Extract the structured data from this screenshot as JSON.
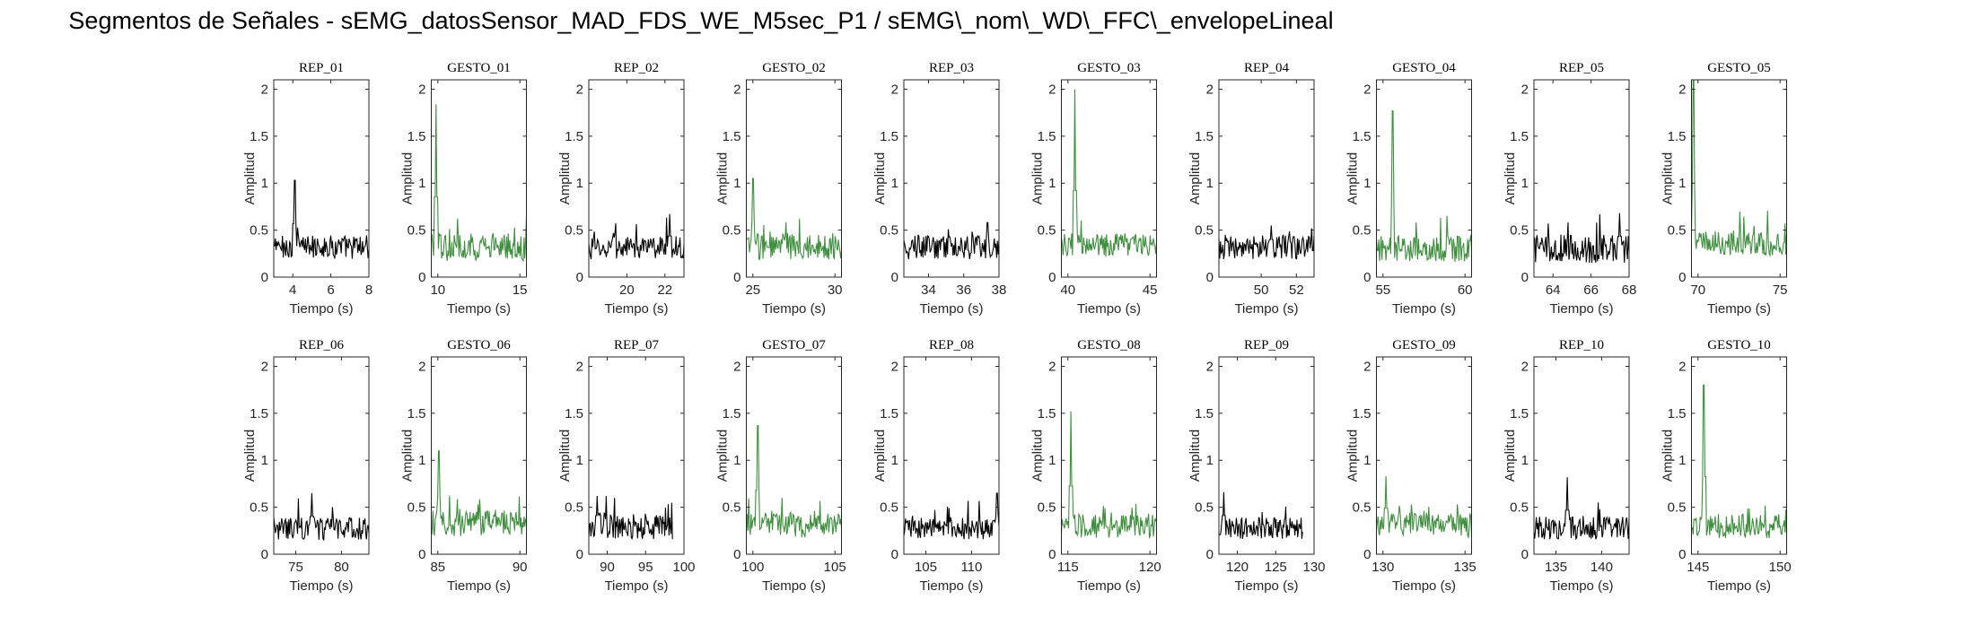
{
  "figure": {
    "title": "Segmentos de Señales - sEMG_datosSensor_MAD_FDS_WE_M5sec_P1 / sEMG\\_nom\\_WD\\_FFC\\_envelopeLineal"
  },
  "colors": {
    "rep": "#000000",
    "gesto": "#3f8f3f",
    "axis": "#262626"
  },
  "chart_data": [
    {
      "type": "line",
      "title": "REP_01",
      "kind": "rep",
      "xlim": [
        3,
        8
      ],
      "ylim": [
        0,
        2.1
      ],
      "xticks": [
        4,
        6,
        8
      ],
      "yticks": [
        0,
        0.5,
        1,
        1.5,
        2
      ],
      "xlabel": "Tiempo (s)",
      "ylabel": "Amplitud",
      "base": 0.32,
      "spread": 0.13,
      "peak_at": 0.22,
      "peak_val": 1.03
    },
    {
      "type": "line",
      "title": "GESTO_01",
      "kind": "gesto",
      "xlim": [
        9.6,
        15.4
      ],
      "ylim": [
        0,
        2.1
      ],
      "xticks": [
        10,
        15
      ],
      "yticks": [
        0,
        0.5,
        1,
        1.5,
        2
      ],
      "xlabel": "Tiempo (s)",
      "ylabel": "Amplitud",
      "base": 0.32,
      "spread": 0.15,
      "peak_at": 0.05,
      "peak_val": 1.84
    },
    {
      "type": "line",
      "title": "REP_02",
      "kind": "rep",
      "xlim": [
        18,
        23
      ],
      "ylim": [
        0,
        2.1
      ],
      "xticks": [
        20,
        22
      ],
      "yticks": [
        0,
        0.5,
        1,
        1.5,
        2
      ],
      "xlabel": "Tiempo (s)",
      "ylabel": "Amplitud",
      "base": 0.31,
      "spread": 0.12,
      "peak_at": 0.85,
      "peak_val": 0.67
    },
    {
      "type": "line",
      "title": "GESTO_02",
      "kind": "gesto",
      "xlim": [
        24.6,
        30.4
      ],
      "ylim": [
        0,
        2.1
      ],
      "xticks": [
        25,
        30
      ],
      "yticks": [
        0,
        0.5,
        1,
        1.5,
        2
      ],
      "xlabel": "Tiempo (s)",
      "ylabel": "Amplitud",
      "base": 0.33,
      "spread": 0.14,
      "peak_at": 0.07,
      "peak_val": 1.05
    },
    {
      "type": "line",
      "title": "REP_03",
      "kind": "rep",
      "xlim": [
        32.6,
        38
      ],
      "ylim": [
        0,
        2.1
      ],
      "xticks": [
        34,
        36,
        38
      ],
      "yticks": [
        0,
        0.5,
        1,
        1.5,
        2
      ],
      "xlabel": "Tiempo (s)",
      "ylabel": "Amplitud",
      "base": 0.32,
      "spread": 0.13,
      "peak_at": 0.88,
      "peak_val": 0.58
    },
    {
      "type": "line",
      "title": "GESTO_03",
      "kind": "gesto",
      "xlim": [
        39.6,
        45.4
      ],
      "ylim": [
        0,
        2.1
      ],
      "xticks": [
        40,
        45
      ],
      "yticks": [
        0,
        0.5,
        1,
        1.5,
        2
      ],
      "xlabel": "Tiempo (s)",
      "ylabel": "Amplitud",
      "base": 0.34,
      "spread": 0.13,
      "peak_at": 0.14,
      "peak_val": 2.0
    },
    {
      "type": "line",
      "title": "REP_04",
      "kind": "rep",
      "xlim": [
        47.6,
        53
      ],
      "ylim": [
        0,
        2.1
      ],
      "xticks": [
        50,
        52
      ],
      "yticks": [
        0,
        0.5,
        1,
        1.5,
        2
      ],
      "xlabel": "Tiempo (s)",
      "ylabel": "Amplitud",
      "base": 0.32,
      "spread": 0.13,
      "peak_at": 0.55,
      "peak_val": 0.55
    },
    {
      "type": "line",
      "title": "GESTO_04",
      "kind": "gesto",
      "xlim": [
        54.6,
        60.4
      ],
      "ylim": [
        0,
        2.1
      ],
      "xticks": [
        55,
        60
      ],
      "yticks": [
        0,
        0.5,
        1,
        1.5,
        2
      ],
      "xlabel": "Tiempo (s)",
      "ylabel": "Amplitud",
      "base": 0.3,
      "spread": 0.14,
      "peak_at": 0.17,
      "peak_val": 1.77
    },
    {
      "type": "line",
      "title": "REP_05",
      "kind": "rep",
      "xlim": [
        63,
        68
      ],
      "ylim": [
        0,
        2.1
      ],
      "xticks": [
        64,
        66,
        68
      ],
      "yticks": [
        0,
        0.5,
        1,
        1.5,
        2
      ],
      "xlabel": "Tiempo (s)",
      "ylabel": "Amplitud",
      "base": 0.3,
      "spread": 0.15,
      "peak_at": 0.9,
      "peak_val": 0.68
    },
    {
      "type": "line",
      "title": "GESTO_05",
      "kind": "gesto",
      "xlim": [
        69.6,
        75.4
      ],
      "ylim": [
        0,
        2.1
      ],
      "xticks": [
        70,
        75
      ],
      "yticks": [
        0,
        0.5,
        1,
        1.5,
        2
      ],
      "xlabel": "Tiempo (s)",
      "ylabel": "Amplitud",
      "base": 0.36,
      "spread": 0.13,
      "peak_at": 0.02,
      "peak_val": 2.1
    },
    {
      "type": "line",
      "title": "REP_06",
      "kind": "rep",
      "xlim": [
        72.6,
        83
      ],
      "ylim": [
        0,
        2.1
      ],
      "xticks": [
        75,
        80
      ],
      "yticks": [
        0,
        0.5,
        1,
        1.5,
        2
      ],
      "xlabel": "Tiempo (s)",
      "ylabel": "Amplitud",
      "base": 0.27,
      "spread": 0.12,
      "peak_at": 0.4,
      "peak_val": 0.65
    },
    {
      "type": "line",
      "title": "GESTO_06",
      "kind": "gesto",
      "xlim": [
        84.6,
        90.4
      ],
      "ylim": [
        0,
        2.1
      ],
      "xticks": [
        85,
        90
      ],
      "yticks": [
        0,
        0.5,
        1,
        1.5,
        2
      ],
      "xlabel": "Tiempo (s)",
      "ylabel": "Amplitud",
      "base": 0.33,
      "spread": 0.14,
      "peak_at": 0.08,
      "peak_val": 1.1
    },
    {
      "type": "line",
      "title": "REP_07",
      "kind": "rep",
      "xlim": [
        87.6,
        100
      ],
      "ylim": [
        0,
        2.1
      ],
      "xticks": [
        90,
        95,
        100
      ],
      "yticks": [
        0,
        0.5,
        1,
        1.5,
        2
      ],
      "xlabel": "Tiempo (s)",
      "ylabel": "Amplitud",
      "base": 0.3,
      "spread": 0.14,
      "peak_at": 0.1,
      "peak_val": 0.62,
      "x_end": 98.5
    },
    {
      "type": "line",
      "title": "GESTO_07",
      "kind": "gesto",
      "xlim": [
        99.6,
        105.4
      ],
      "ylim": [
        0,
        2.1
      ],
      "xticks": [
        100,
        105
      ],
      "yticks": [
        0,
        0.5,
        1,
        1.5,
        2
      ],
      "xlabel": "Tiempo (s)",
      "ylabel": "Amplitud",
      "base": 0.31,
      "spread": 0.13,
      "peak_at": 0.12,
      "peak_val": 1.37
    },
    {
      "type": "line",
      "title": "REP_08",
      "kind": "rep",
      "xlim": [
        102.6,
        113
      ],
      "ylim": [
        0,
        2.1
      ],
      "xticks": [
        105,
        110
      ],
      "yticks": [
        0,
        0.5,
        1,
        1.5,
        2
      ],
      "xlabel": "Tiempo (s)",
      "ylabel": "Amplitud",
      "base": 0.28,
      "spread": 0.12,
      "peak_at": 0.98,
      "peak_val": 0.65
    },
    {
      "type": "line",
      "title": "GESTO_08",
      "kind": "gesto",
      "xlim": [
        114.6,
        120.4
      ],
      "ylim": [
        0,
        2.1
      ],
      "xticks": [
        115,
        120
      ],
      "yticks": [
        0,
        0.5,
        1,
        1.5,
        2
      ],
      "xlabel": "Tiempo (s)",
      "ylabel": "Amplitud",
      "base": 0.3,
      "spread": 0.13,
      "peak_at": 0.1,
      "peak_val": 1.52
    },
    {
      "type": "line",
      "title": "REP_09",
      "kind": "rep",
      "xlim": [
        117.6,
        130
      ],
      "ylim": [
        0,
        2.1
      ],
      "xticks": [
        120,
        125,
        130
      ],
      "yticks": [
        0,
        0.5,
        1,
        1.5,
        2
      ],
      "xlabel": "Tiempo (s)",
      "ylabel": "Amplitud",
      "base": 0.28,
      "spread": 0.12,
      "peak_at": 0.06,
      "peak_val": 0.66,
      "x_end": 128.5
    },
    {
      "type": "line",
      "title": "GESTO_09",
      "kind": "gesto",
      "xlim": [
        129.6,
        135.4
      ],
      "ylim": [
        0,
        2.1
      ],
      "xticks": [
        130,
        135
      ],
      "yticks": [
        0,
        0.5,
        1,
        1.5,
        2
      ],
      "xlabel": "Tiempo (s)",
      "ylabel": "Amplitud",
      "base": 0.31,
      "spread": 0.13,
      "peak_at": 0.1,
      "peak_val": 0.83
    },
    {
      "type": "line",
      "title": "REP_10",
      "kind": "rep",
      "xlim": [
        132.6,
        143
      ],
      "ylim": [
        0,
        2.1
      ],
      "xticks": [
        135,
        140
      ],
      "yticks": [
        0,
        0.5,
        1,
        1.5,
        2
      ],
      "xlabel": "Tiempo (s)",
      "ylabel": "Amplitud",
      "base": 0.28,
      "spread": 0.12,
      "peak_at": 0.35,
      "peak_val": 0.82
    },
    {
      "type": "line",
      "title": "GESTO_10",
      "kind": "gesto",
      "xlim": [
        144.6,
        150.4
      ],
      "ylim": [
        0,
        2.1
      ],
      "xticks": [
        145,
        150
      ],
      "yticks": [
        0,
        0.5,
        1,
        1.5,
        2
      ],
      "xlabel": "Tiempo (s)",
      "ylabel": "Amplitud",
      "base": 0.3,
      "spread": 0.13,
      "peak_at": 0.13,
      "peak_val": 1.8
    }
  ]
}
